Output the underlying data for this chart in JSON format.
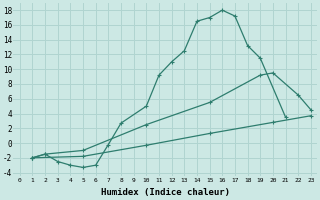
{
  "xlabel": "Humidex (Indice chaleur)",
  "bg_color": "#cce8e4",
  "grid_color": "#b0d4d0",
  "line_color": "#2e7d6e",
  "xlim": [
    -0.5,
    23.5
  ],
  "ylim": [
    -4.5,
    19
  ],
  "xticks": [
    0,
    1,
    2,
    3,
    4,
    5,
    6,
    7,
    8,
    9,
    10,
    11,
    12,
    13,
    14,
    15,
    16,
    17,
    18,
    19,
    20,
    21,
    22,
    23
  ],
  "yticks": [
    -4,
    -2,
    0,
    2,
    4,
    6,
    8,
    10,
    12,
    14,
    16,
    18
  ],
  "line1_x": [
    1,
    2,
    3,
    4,
    5,
    6,
    7,
    8,
    10,
    11,
    12,
    13,
    14,
    15,
    16,
    17,
    18,
    19,
    21
  ],
  "line1_y": [
    -2,
    -1.5,
    -2.5,
    -3,
    -3.3,
    -3,
    -0.2,
    2.7,
    5,
    9.2,
    11,
    12.5,
    16.5,
    17.0,
    18,
    17.2,
    13.2,
    11.5,
    3.5
  ],
  "line2_x": [
    1,
    2,
    5,
    10,
    15,
    19,
    20,
    22,
    23
  ],
  "line2_y": [
    -2,
    -1.5,
    -1,
    2.5,
    5.5,
    9.2,
    9.5,
    6.5,
    4.5
  ],
  "line3_x": [
    1,
    5,
    10,
    15,
    20,
    23
  ],
  "line3_y": [
    -2,
    -1.8,
    -0.3,
    1.3,
    2.8,
    3.7
  ],
  "marker": "+"
}
